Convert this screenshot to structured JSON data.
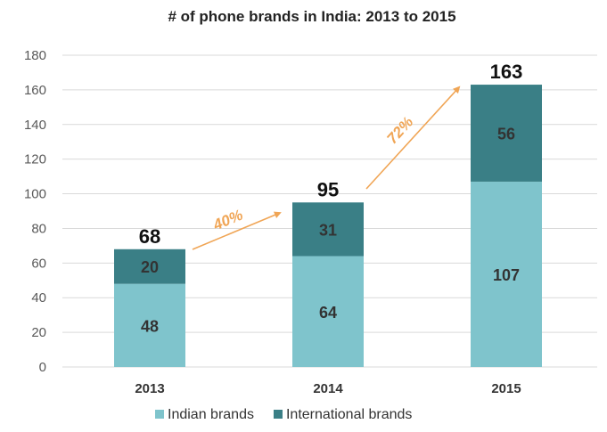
{
  "chart_data": {
    "type": "bar",
    "stacked": true,
    "title": "# of phone brands in India: 2013 to 2015",
    "categories": [
      "2013",
      "2014",
      "2015"
    ],
    "series": [
      {
        "name": "Indian brands",
        "values": [
          48,
          64,
          107
        ],
        "color": "#7FC4CC"
      },
      {
        "name": "International brands",
        "values": [
          20,
          31,
          56
        ],
        "color": "#3A7F86"
      }
    ],
    "totals": [
      68,
      95,
      163
    ],
    "growth_annotations": [
      {
        "from": "2013",
        "to": "2014",
        "label": "40%"
      },
      {
        "from": "2014",
        "to": "2015",
        "label": "72%"
      }
    ],
    "ylim": [
      0,
      180
    ],
    "yticks": [
      0,
      20,
      40,
      60,
      80,
      100,
      120,
      140,
      160,
      180
    ],
    "grid": true,
    "legend_position": "bottom",
    "colors": {
      "gridline": "#D9D9D9",
      "arrow": "#F0A555",
      "axis_text": "#595959"
    }
  }
}
